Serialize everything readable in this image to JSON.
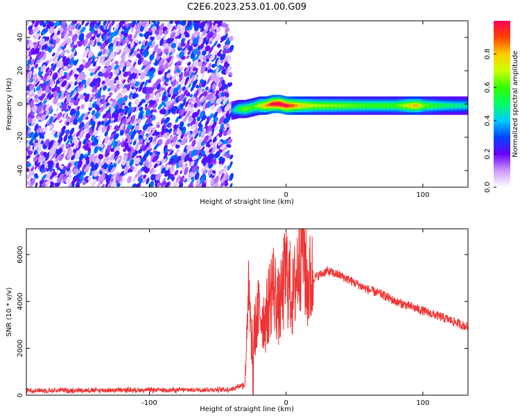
{
  "title": "C2E6.2023.253.01.00.G09",
  "chart_data": [
    {
      "type": "heatmap",
      "xlabel": "Height of straight line (km)",
      "ylabel": "Frequency (Hz)",
      "xlim": [
        -190,
        133
      ],
      "ylim": [
        -50,
        50
      ],
      "xticks": [
        -100,
        0,
        100
      ],
      "xtick_labels": [
        "-100",
        "0",
        "100"
      ],
      "yticks": [
        -40,
        -20,
        0,
        20,
        40
      ],
      "ytick_labels": [
        "-40",
        "-20",
        "0",
        "20",
        "40"
      ],
      "noise_region_x": [
        -190,
        -40
      ],
      "ridge": {
        "x": [
          -40,
          -35,
          -30,
          -25,
          -20,
          -15,
          -10,
          -5,
          0,
          5,
          10,
          20,
          40,
          60,
          80,
          95,
          100,
          110,
          120,
          133
        ],
        "y": [
          -4,
          -3,
          -3,
          -2,
          -1,
          -1,
          0,
          0,
          -1,
          -1,
          -1,
          -1,
          -1,
          -1,
          -1,
          -1,
          -1,
          -1,
          -1,
          -1
        ],
        "amplitude": [
          0.25,
          0.45,
          0.55,
          0.5,
          0.6,
          0.75,
          0.9,
          0.95,
          0.9,
          0.8,
          0.7,
          0.6,
          0.55,
          0.5,
          0.5,
          0.75,
          0.55,
          0.45,
          0.4,
          0.35
        ]
      },
      "colorbar": {
        "label": "Normalized spectral amplitude",
        "range": [
          0,
          1
        ],
        "ticks": [
          0.0,
          0.2,
          0.4,
          0.6,
          0.8
        ],
        "tick_labels": [
          "0.0",
          "0.2",
          "0.4",
          "0.6",
          "0.8"
        ],
        "colors": [
          "#ffffff",
          "#cc99ff",
          "#6a00ff",
          "#0044ff",
          "#00ccff",
          "#00ff66",
          "#33ff00",
          "#ccff00",
          "#ffcc00",
          "#ff4400",
          "#ff0055"
        ]
      }
    },
    {
      "type": "line",
      "xlabel": "Height of straight line (km)",
      "ylabel": "SNR (10 * v/v)",
      "xlim": [
        -190,
        133
      ],
      "ylim": [
        0,
        7100
      ],
      "xticks": [
        -100,
        0,
        100
      ],
      "xtick_labels": [
        "-100",
        "0",
        "100"
      ],
      "yticks": [
        0,
        2000,
        4000,
        6000
      ],
      "ytick_labels": [
        "0",
        "2000",
        "4000",
        "6000"
      ],
      "series": [
        {
          "color": "#ee3333",
          "x": [
            -190,
            -150,
            -100,
            -60,
            -40,
            -30,
            -28,
            -25,
            -20,
            -15,
            -10,
            -5,
            0,
            5,
            10,
            12,
            15,
            20,
            30,
            40,
            50,
            60,
            70,
            80,
            90,
            100,
            110,
            120,
            133
          ],
          "y": [
            200,
            210,
            220,
            230,
            250,
            500,
            4500,
            2200,
            3600,
            3200,
            4800,
            3600,
            5300,
            4100,
            6200,
            7000,
            4700,
            5000,
            5300,
            5100,
            4800,
            4500,
            4300,
            4000,
            3800,
            3600,
            3400,
            3200,
            2900
          ]
        }
      ]
    }
  ]
}
